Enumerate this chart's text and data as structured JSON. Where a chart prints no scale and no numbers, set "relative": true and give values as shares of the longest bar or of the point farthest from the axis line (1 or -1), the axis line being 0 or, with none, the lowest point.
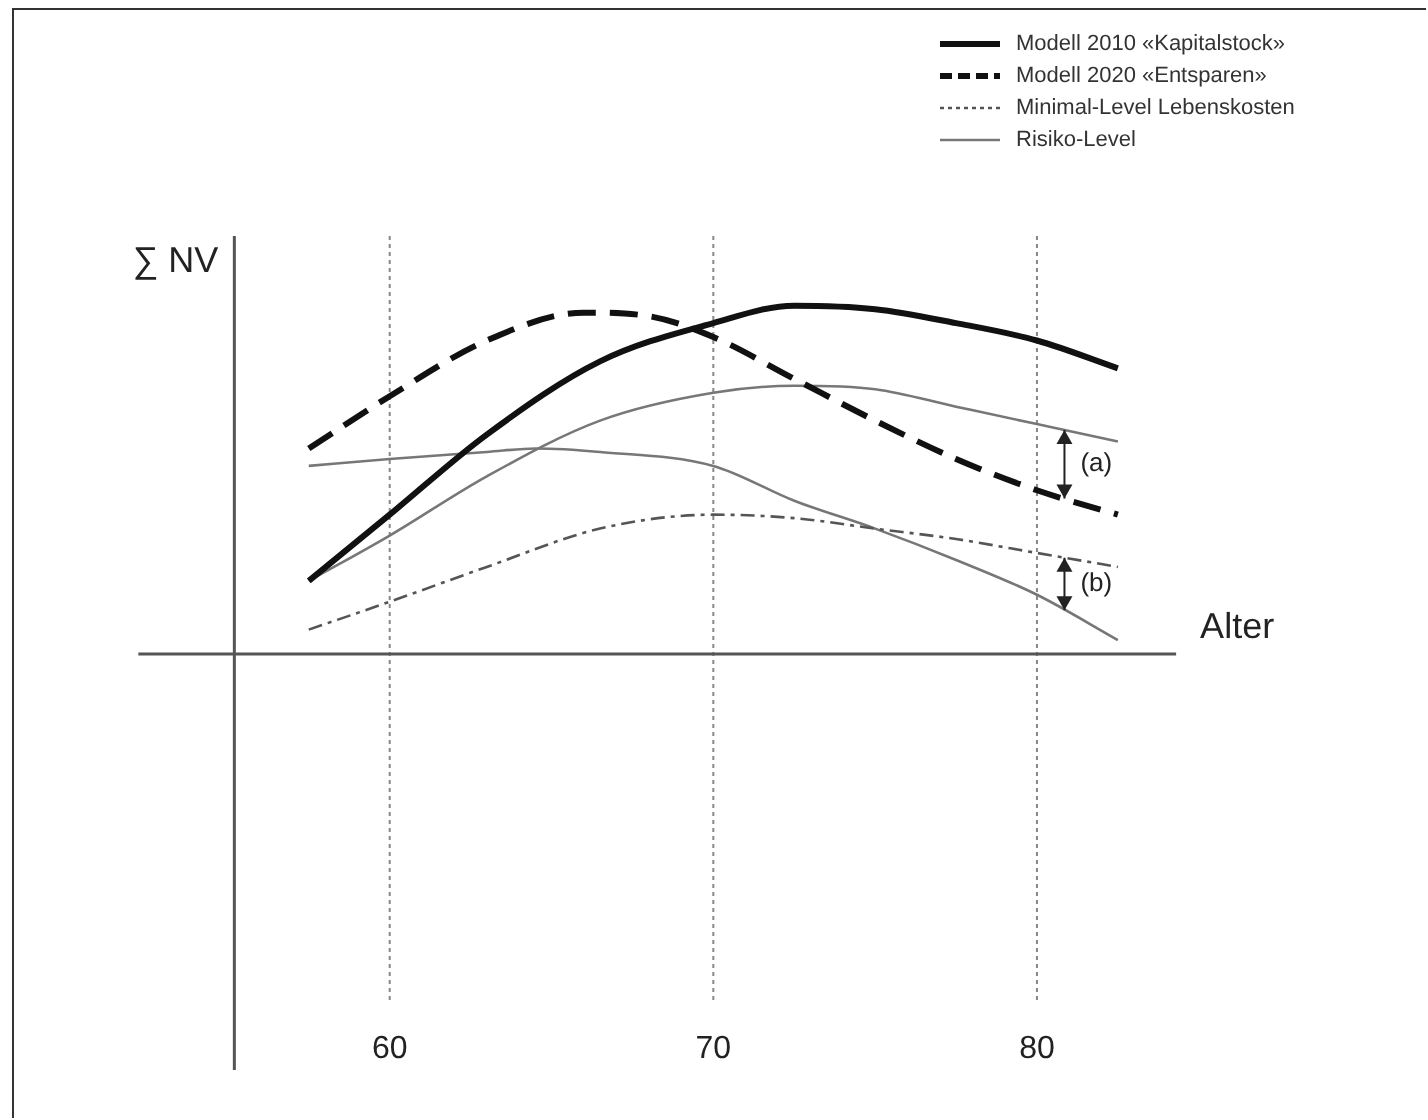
{
  "chart_data": {
    "type": "line",
    "relative": true,
    "xlabel": "Alter",
    "ylabel": "∑ NV",
    "xlim": [
      55.2,
      84.3
    ],
    "xticks": [
      60,
      70,
      80
    ],
    "grid": "x",
    "legend": "top right",
    "marker": "none",
    "series": [
      {
        "name": "Modell 2010 «Kapitalstock»",
        "color": "#111111",
        "line_style": "solid",
        "x": [
          57.5,
          60,
          63,
          66.5,
          70,
          72.5,
          75,
          77.5,
          80,
          82.5
        ],
        "values": [
          0.21,
          0.4,
          0.63,
          0.84,
          0.95,
          1.0,
          0.99,
          0.95,
          0.9,
          0.82
        ]
      },
      {
        "name": "Modell 2020 «Entsparen»",
        "color": "#111111",
        "line_style": "dashed",
        "x": [
          57.5,
          60,
          63,
          66,
          68,
          70,
          72.5,
          75,
          77.5,
          80,
          82.5
        ],
        "values": [
          0.59,
          0.74,
          0.9,
          0.98,
          0.97,
          0.91,
          0.79,
          0.67,
          0.56,
          0.47,
          0.4
        ]
      },
      {
        "name": "Minimal-Level Lebenskosten",
        "color": "#555555",
        "line_style": "dotted",
        "x": [
          57.5,
          60,
          63,
          66.5,
          70,
          72.5,
          75,
          77.5,
          80,
          82.5
        ],
        "values": [
          0.07,
          0.15,
          0.25,
          0.36,
          0.4,
          0.39,
          0.36,
          0.33,
          0.29,
          0.25
        ]
      },
      {
        "name": "Risiko-Level",
        "color": "#777777",
        "line_style": "solid",
        "x": [
          57.5,
          60,
          63,
          66.5,
          70,
          72.5,
          75,
          77.5,
          80,
          82.5
        ],
        "values": [
          0.21,
          0.34,
          0.51,
          0.67,
          0.75,
          0.77,
          0.76,
          0.71,
          0.66,
          0.61
        ]
      },
      {
        "color": "#777777",
        "line_style": "solid",
        "x": [
          57.5,
          60,
          63,
          64.5,
          66.5,
          70,
          72.5,
          75,
          77.5,
          80,
          82.5
        ],
        "values": [
          0.54,
          0.56,
          0.58,
          0.59,
          0.58,
          0.54,
          0.44,
          0.36,
          0.27,
          0.17,
          0.04
        ]
      }
    ],
    "annotations": [
      "(a)",
      "(b)"
    ]
  }
}
